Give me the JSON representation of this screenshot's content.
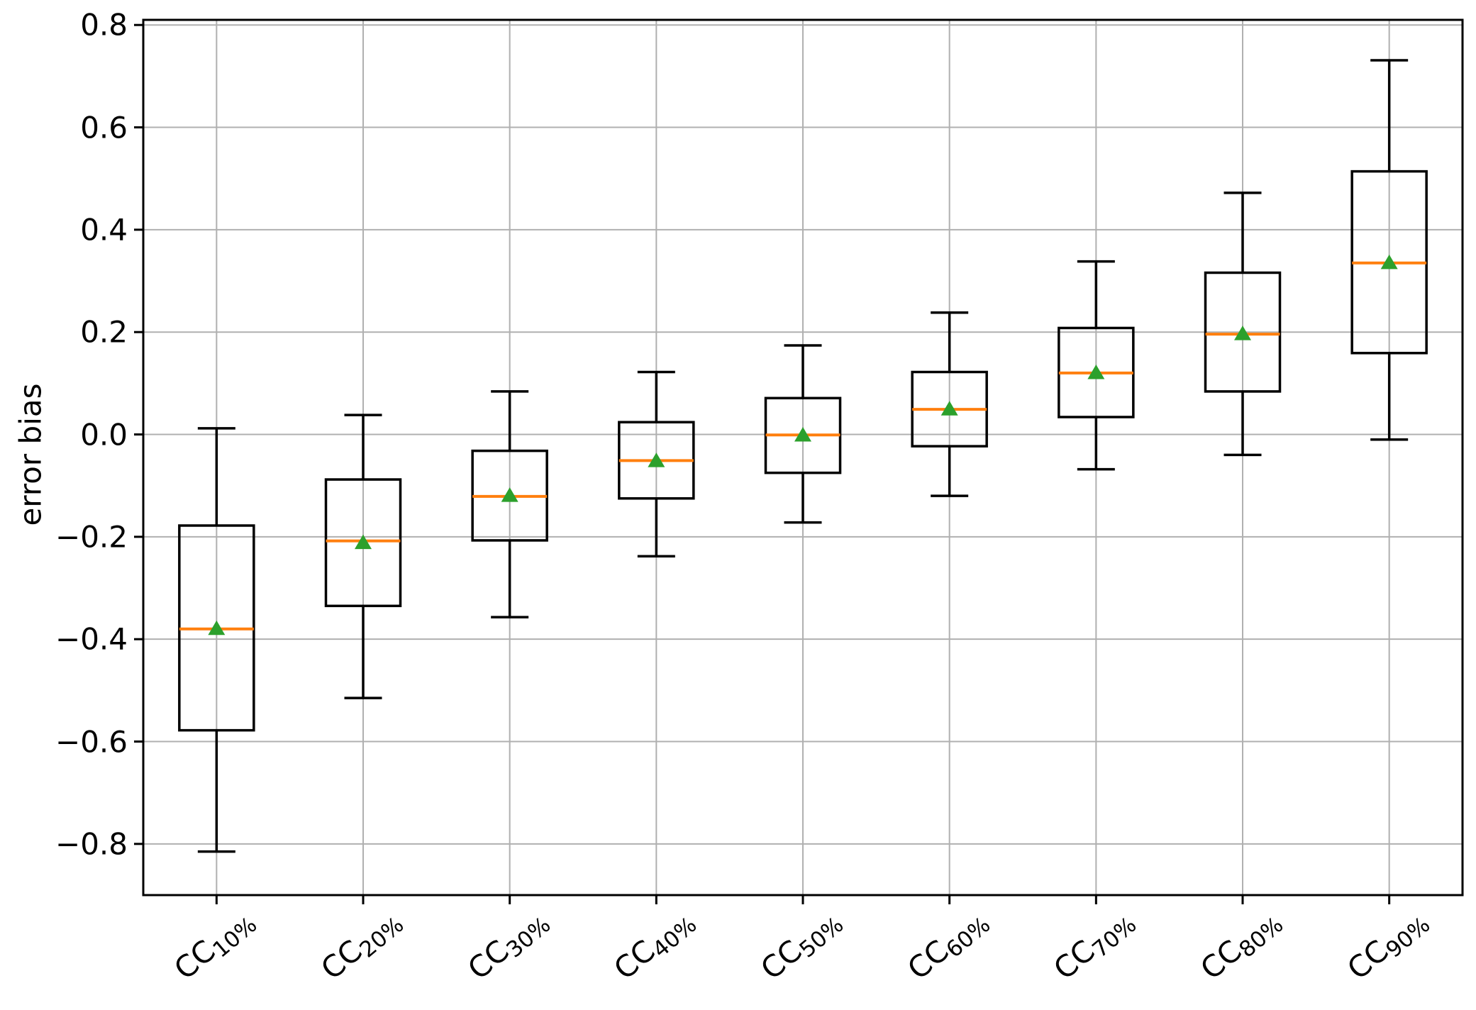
{
  "figure": {
    "background": "#ffffff"
  },
  "chart_data": {
    "type": "box",
    "title": "",
    "xlabel": "",
    "ylabel": "error bias",
    "ylim": [
      -0.9,
      0.81
    ],
    "grid": true,
    "legend": "none",
    "yticks": [
      {
        "value": 0.8,
        "label": "0.8"
      },
      {
        "value": 0.6,
        "label": "0.6"
      },
      {
        "value": 0.4,
        "label": "0.4"
      },
      {
        "value": 0.2,
        "label": "0.2"
      },
      {
        "value": 0.0,
        "label": "0.0"
      },
      {
        "value": -0.2,
        "label": "−0.2"
      },
      {
        "value": -0.4,
        "label": "−0.4"
      },
      {
        "value": -0.6,
        "label": "−0.6"
      },
      {
        "value": -0.8,
        "label": "−0.8"
      }
    ],
    "categories": [
      {
        "main": "CC",
        "sub": "10%"
      },
      {
        "main": "CC",
        "sub": "20%"
      },
      {
        "main": "CC",
        "sub": "30%"
      },
      {
        "main": "CC",
        "sub": "40%"
      },
      {
        "main": "CC",
        "sub": "50%"
      },
      {
        "main": "CC",
        "sub": "60%"
      },
      {
        "main": "CC",
        "sub": "70%"
      },
      {
        "main": "CC",
        "sub": "80%"
      },
      {
        "main": "CC",
        "sub": "90%"
      }
    ],
    "boxes": [
      {
        "label": "CC 10%",
        "whisker_low": -0.815,
        "q1": -0.578,
        "median": -0.38,
        "mean": -0.378,
        "q3": -0.178,
        "whisker_high": 0.012
      },
      {
        "label": "CC 20%",
        "whisker_low": -0.515,
        "q1": -0.335,
        "median": -0.208,
        "mean": -0.21,
        "q3": -0.088,
        "whisker_high": 0.038
      },
      {
        "label": "CC 30%",
        "whisker_low": -0.357,
        "q1": -0.207,
        "median": -0.121,
        "mean": -0.118,
        "q3": -0.032,
        "whisker_high": 0.084
      },
      {
        "label": "CC 40%",
        "whisker_low": -0.238,
        "q1": -0.125,
        "median": -0.051,
        "mean": -0.05,
        "q3": 0.024,
        "whisker_high": 0.122
      },
      {
        "label": "CC 50%",
        "whisker_low": -0.172,
        "q1": -0.075,
        "median": -0.001,
        "mean": 0.0,
        "q3": 0.071,
        "whisker_high": 0.174
      },
      {
        "label": "CC 60%",
        "whisker_low": -0.12,
        "q1": -0.023,
        "median": 0.049,
        "mean": 0.051,
        "q3": 0.122,
        "whisker_high": 0.238
      },
      {
        "label": "CC 70%",
        "whisker_low": -0.068,
        "q1": 0.034,
        "median": 0.12,
        "mean": 0.122,
        "q3": 0.208,
        "whisker_high": 0.338
      },
      {
        "label": "CC 80%",
        "whisker_low": -0.04,
        "q1": 0.084,
        "median": 0.196,
        "mean": 0.198,
        "q3": 0.316,
        "whisker_high": 0.472
      },
      {
        "label": "CC 90%",
        "whisker_low": -0.01,
        "q1": 0.159,
        "median": 0.335,
        "mean": 0.337,
        "q3": 0.514,
        "whisker_high": 0.731
      }
    ],
    "colors": {
      "box_edge": "#000000",
      "whisker": "#000000",
      "median": "#ff7f0e",
      "mean_marker": "#2ca02c",
      "grid": "#b0b0b0",
      "spine": "#000000",
      "tick_text": "#000000"
    }
  }
}
